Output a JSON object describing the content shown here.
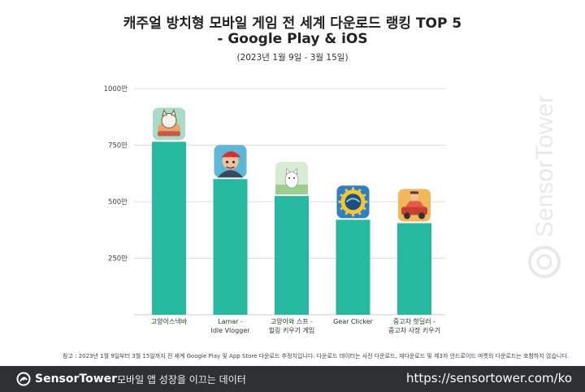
{
  "header": {
    "title_line1": "캐주얼 방치형 모바일 게임 전 세계 다운로드 랭킹 TOP 5",
    "title_line2": "- Google Play & iOS",
    "subtitle": "(2023년 1월 9일 - 3월 15일)"
  },
  "chart_data": {
    "type": "bar",
    "categories": [
      "고양이스낵바",
      "Lamar -\nIdle Vlogger",
      "고양이와 스프 -\n힐링 키우기 게임",
      "Gear Clicker",
      "중고차 핫딜러 -\n중고차 사장 키우기"
    ],
    "values": [
      765,
      600,
      525,
      420,
      405
    ],
    "ylim": [
      0,
      1000
    ],
    "yticks": [
      250,
      500,
      750,
      1000
    ],
    "ytick_labels": [
      "250만",
      "500만",
      "750만",
      "1000만"
    ],
    "grid": true,
    "bar_color": "#26b8a1"
  },
  "note": "참고 : 2023년 1월 9일부터 3월 15일까지 전 세계 Google Play 및 App Store 다운로드 추정치입니다. 다운로드 데이터는 사전 다운로드, 재다운로드 및 제3자 안드로이드 마켓의 다운로드는 포함하지 않습니다.",
  "footer": {
    "brand": "SensorTower",
    "tagline": "모바일 앱 성장을 이끄는 데이터",
    "url": "https://sensortower.com/ko"
  },
  "watermark": "SensorTower",
  "icons": [
    "cat-snack-bar-app-icon",
    "lamar-idle-vlogger-app-icon",
    "cat-and-soup-app-icon",
    "gear-clicker-app-icon",
    "used-car-dealer-app-icon"
  ],
  "colors": {
    "footer_bg": "#2d3133",
    "grid": "#dddddd"
  }
}
